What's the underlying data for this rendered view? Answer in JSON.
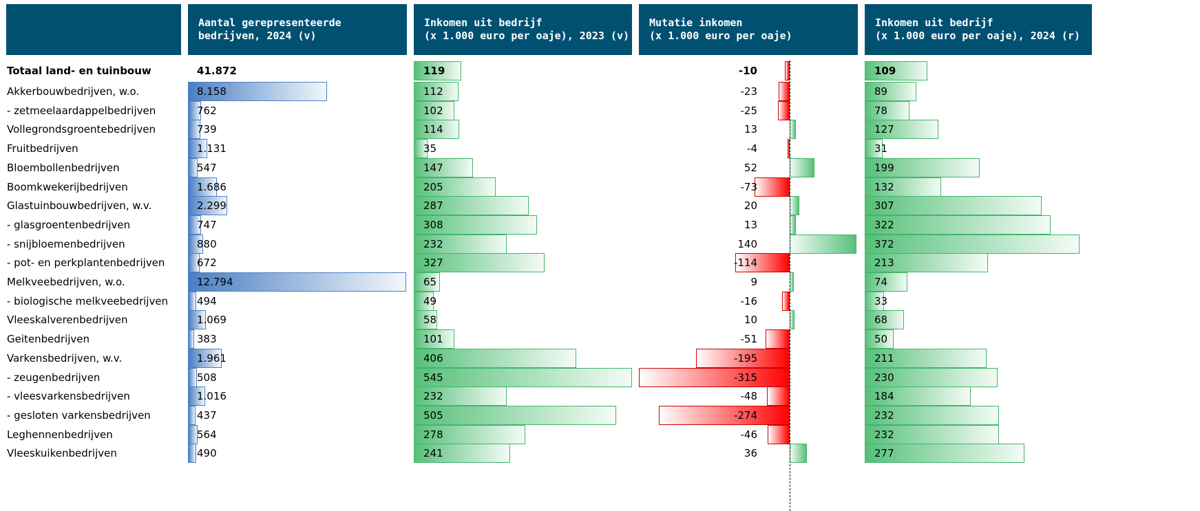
{
  "headers": [
    {
      "lines": [
        "Aantal gerepresenteerde",
        "bedrijven, 2024 (v)"
      ]
    },
    {
      "lines": [
        "Inkomen uit bedrijf",
        "(x 1.000 euro per oaje), 2023 (v)"
      ]
    },
    {
      "lines": [
        "Mutatie inkomen",
        "(x 1.000 euro per oaje)"
      ]
    },
    {
      "lines": [
        "Inkomen uit bedrijf",
        "(x 1.000 euro per oaje), 2024 (r)"
      ]
    }
  ],
  "chart_data": {
    "type": "bar",
    "categories": [
      "Totaal land- en tuinbouw",
      "Akkerbouwbedrijven, w.o.",
      "- zetmeelaardappelbedrijven",
      "Vollegrondsgroentebedrijven",
      "Fruitbedrijven",
      "Bloembollenbedrijven",
      "Boomkwekerijbedrijven",
      "Glastuinbouwbedrijven, w.v.",
      "- glasgroentenbedrijven",
      "- snijbloemenbedrijven",
      "- pot- en perkplantenbedrijven",
      "Melkveebedrijven, w.o.",
      "- biologische melkveebedrijven",
      "Vleeskalverenbedrijven",
      "Geitenbedrijven",
      "Varkensbedrijven, w.v.",
      "- zeugenbedrijven",
      "- vleesvarkensbedrijven",
      "- gesloten varkensbedrijven",
      "Leghennenbedrijven",
      "Vleeskuikenbedrijven"
    ],
    "series": [
      {
        "name": "Aantal gerepresenteerde bedrijven, 2024 (v)",
        "values": [
          41872,
          8158,
          762,
          739,
          1131,
          547,
          1686,
          2299,
          747,
          880,
          672,
          12794,
          494,
          1069,
          383,
          1961,
          508,
          1016,
          437,
          564,
          490
        ],
        "labels": [
          "41.872",
          "8.158",
          "762",
          "739",
          "1.131",
          "547",
          "1.686",
          "2.299",
          "747",
          "880",
          "672",
          "12.794",
          "494",
          "1.069",
          "383",
          "1.961",
          "508",
          "1.016",
          "437",
          "564",
          "490"
        ]
      },
      {
        "name": "Inkomen uit bedrijf (x 1.000 euro per oaje), 2023 (v)",
        "values": [
          119,
          112,
          102,
          114,
          35,
          147,
          205,
          287,
          308,
          232,
          327,
          65,
          49,
          58,
          101,
          406,
          545,
          232,
          505,
          278,
          241
        ]
      },
      {
        "name": "Mutatie inkomen (x 1.000 euro per oaje)",
        "values": [
          -10,
          -23,
          -25,
          13,
          -4,
          52,
          -73,
          20,
          13,
          140,
          -114,
          9,
          -16,
          10,
          -51,
          -195,
          -315,
          -48,
          -274,
          -46,
          36
        ]
      },
      {
        "name": "Inkomen uit bedrijf (x 1.000 euro per oaje), 2024 (r)",
        "values": [
          109,
          89,
          78,
          127,
          31,
          199,
          132,
          307,
          322,
          372,
          213,
          74,
          33,
          68,
          50,
          211,
          230,
          184,
          232,
          232,
          277
        ]
      }
    ],
    "bold_rows": [
      0
    ],
    "colors": {
      "header_bg": "#005072",
      "header_text": "#ffffff",
      "count_bar": "#4a7fc4",
      "income_bar": "#57c07a",
      "negative_bar": "#ff0000"
    }
  }
}
